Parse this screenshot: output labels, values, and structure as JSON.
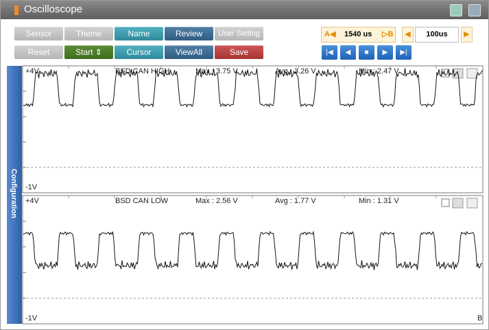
{
  "title_bar": {
    "title": "Oscilloscope"
  },
  "toolbar": {
    "row1": [
      "Sensor",
      "Theme",
      "Name",
      "Review",
      "User Setting"
    ],
    "row2": [
      "Reset",
      "Start ⇕",
      "Cursor",
      "ViewAll",
      "Save"
    ]
  },
  "cursor": {
    "a_label": "A◀",
    "a_value": "1540 us",
    "b_label": "▷B",
    "time_per_div": "100us"
  },
  "sidebar": {
    "label": "Configuration"
  },
  "channels": [
    {
      "top_label": "+4V",
      "name": "BSD CAN HIGH",
      "max": "Max : 3.75 V",
      "avg": "Avg : 3.26 V",
      "min": "Min : 2.47 V",
      "bottom_label": "-1V"
    },
    {
      "top_label": "+4V",
      "name": "BSD CAN LOW",
      "max": "Max : 2.56 V",
      "avg": "Avg : 1.77 V",
      "min": "Min : 1.31 V",
      "bottom_label": "-1V"
    }
  ],
  "footer_label": "B"
}
